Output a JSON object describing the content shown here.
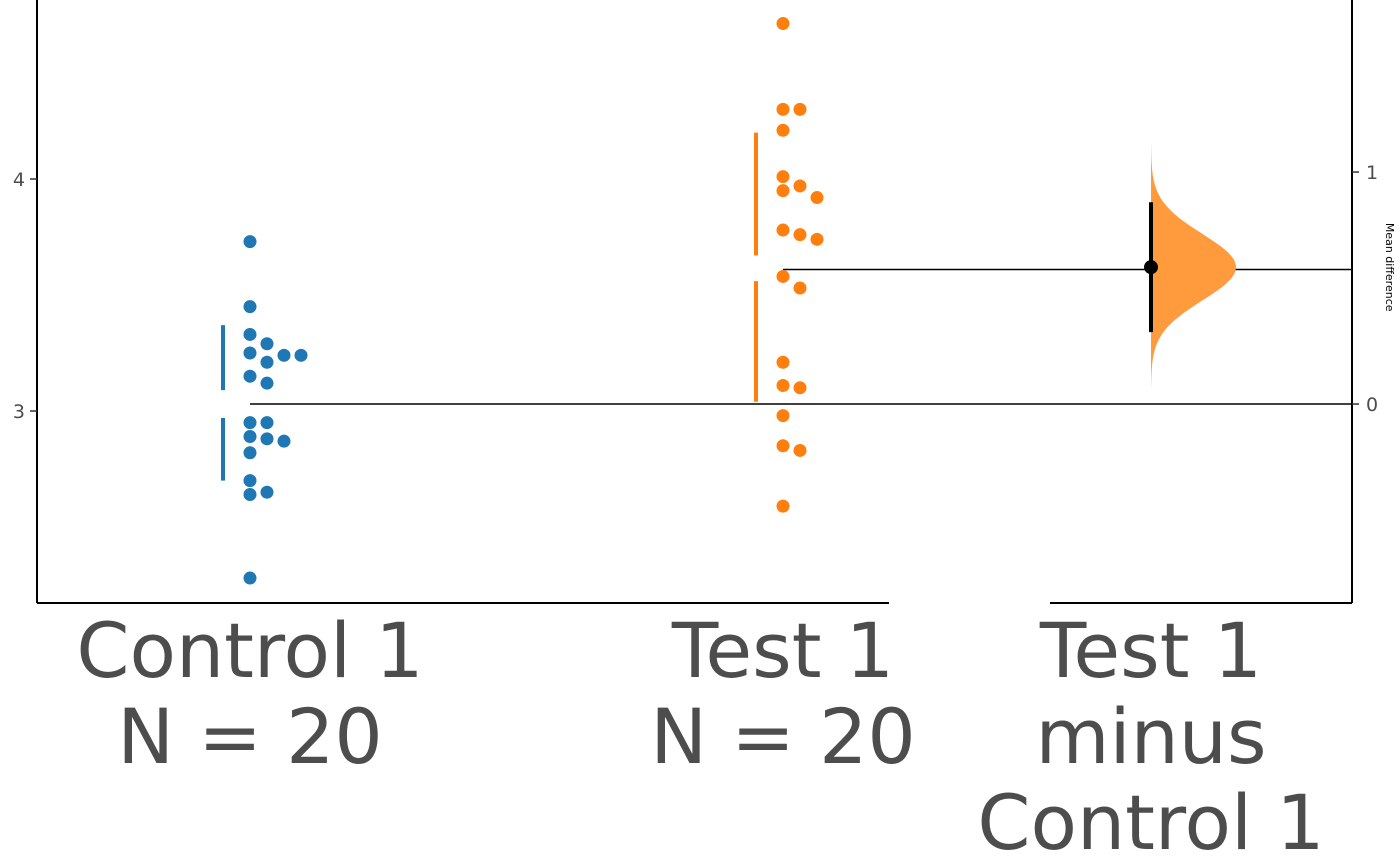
{
  "chart_data": {
    "type": "scatter",
    "title": "",
    "palette": {
      "control": "#1f77b4",
      "test": "#ff7f0e",
      "delta_fill": "#ff9a3d",
      "axis": "#000000",
      "text": "#4d4d4d"
    },
    "left_axis": {
      "ylim": [
        2.18,
        4.75
      ],
      "ticks": [
        3,
        4
      ],
      "tick_labels": [
        "3",
        "4"
      ],
      "label": ""
    },
    "right_axis": {
      "label": "Mean difference",
      "ticks": [
        0,
        1
      ],
      "tick_labels": [
        "0",
        "1"
      ]
    },
    "groups": [
      {
        "name": "Control 1",
        "label_lines": [
          "Control 1",
          "N = 20"
        ],
        "color": "#1f77b4",
        "values": [
          3.73,
          3.45,
          3.33,
          3.29,
          3.24,
          3.24,
          3.25,
          3.21,
          3.15,
          3.12,
          2.95,
          2.95,
          2.88,
          2.89,
          2.87,
          2.82,
          2.7,
          2.65,
          2.64,
          2.28
        ],
        "mean": 3.03,
        "sd_bar": {
          "upper": [
            3.09,
            3.37
          ],
          "lower": [
            2.7,
            2.97
          ]
        }
      },
      {
        "name": "Test 1",
        "label_lines": [
          "Test 1",
          "N = 20"
        ],
        "color": "#ff7f0e",
        "values": [
          4.67,
          4.3,
          4.3,
          4.21,
          4.01,
          3.97,
          3.95,
          3.92,
          3.78,
          3.76,
          3.74,
          3.58,
          3.53,
          3.21,
          3.11,
          3.1,
          2.98,
          2.85,
          2.83,
          2.59
        ],
        "mean": 3.61,
        "sd_bar": {
          "upper": [
            3.67,
            4.2
          ],
          "lower": [
            3.04,
            3.56
          ]
        }
      }
    ],
    "effect_size": {
      "label_lines": [
        "Test 1",
        "minus",
        "Control 1"
      ],
      "mean_difference": 0.59,
      "ci": [
        0.31,
        0.87
      ],
      "bootstrap_range": [
        0.08,
        1.12
      ]
    }
  }
}
